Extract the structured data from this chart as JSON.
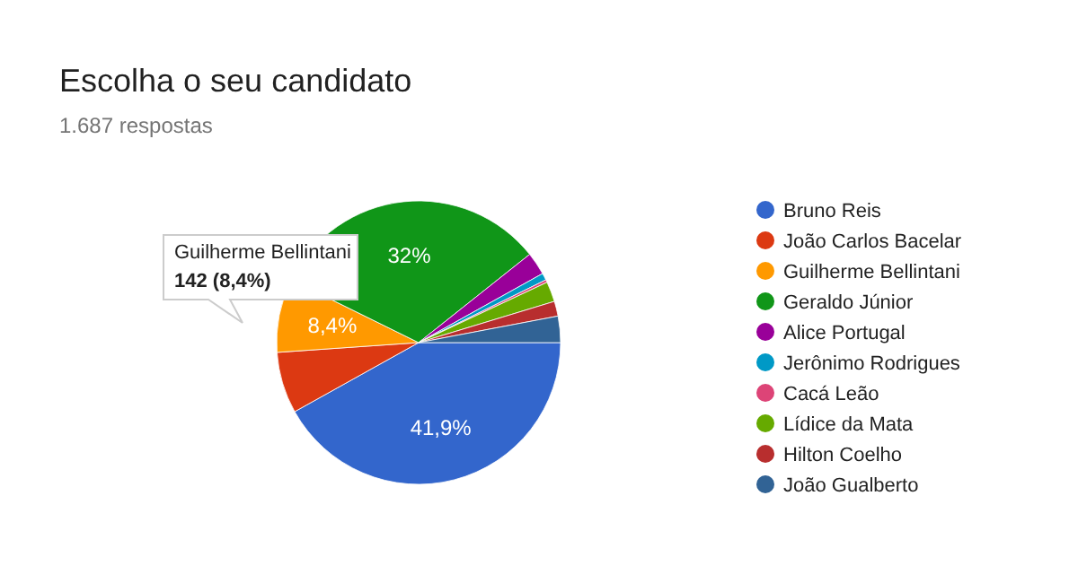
{
  "chart_data": {
    "type": "pie",
    "title": "Escolha o seu candidato",
    "subtitle": "1.687 respostas",
    "categories": [
      "Bruno Reis",
      "João Carlos Bacelar",
      "Guilherme Bellintani",
      "Geraldo Júnior",
      "Alice Portugal",
      "Jerônimo Rodrigues",
      "Cacá Leão",
      "Lídice da Mata",
      "Hilton Coelho",
      "João Gualberto"
    ],
    "values": [
      41.9,
      7,
      8.4,
      32,
      2.6,
      0.8,
      0.3,
      2.3,
      1.7,
      3
    ],
    "colors": [
      "#3366cc",
      "#dc3912",
      "#ff9900",
      "#109618",
      "#990099",
      "#0099c6",
      "#dd4477",
      "#66aa00",
      "#b82e2e",
      "#316395"
    ],
    "value_labels": [
      "41,9%",
      null,
      "8,4%",
      "32%",
      null,
      null,
      null,
      null,
      null,
      null
    ],
    "annotations": [
      "Guilherme Bellintani",
      "142 (8,4%)"
    ],
    "legend": "right"
  }
}
